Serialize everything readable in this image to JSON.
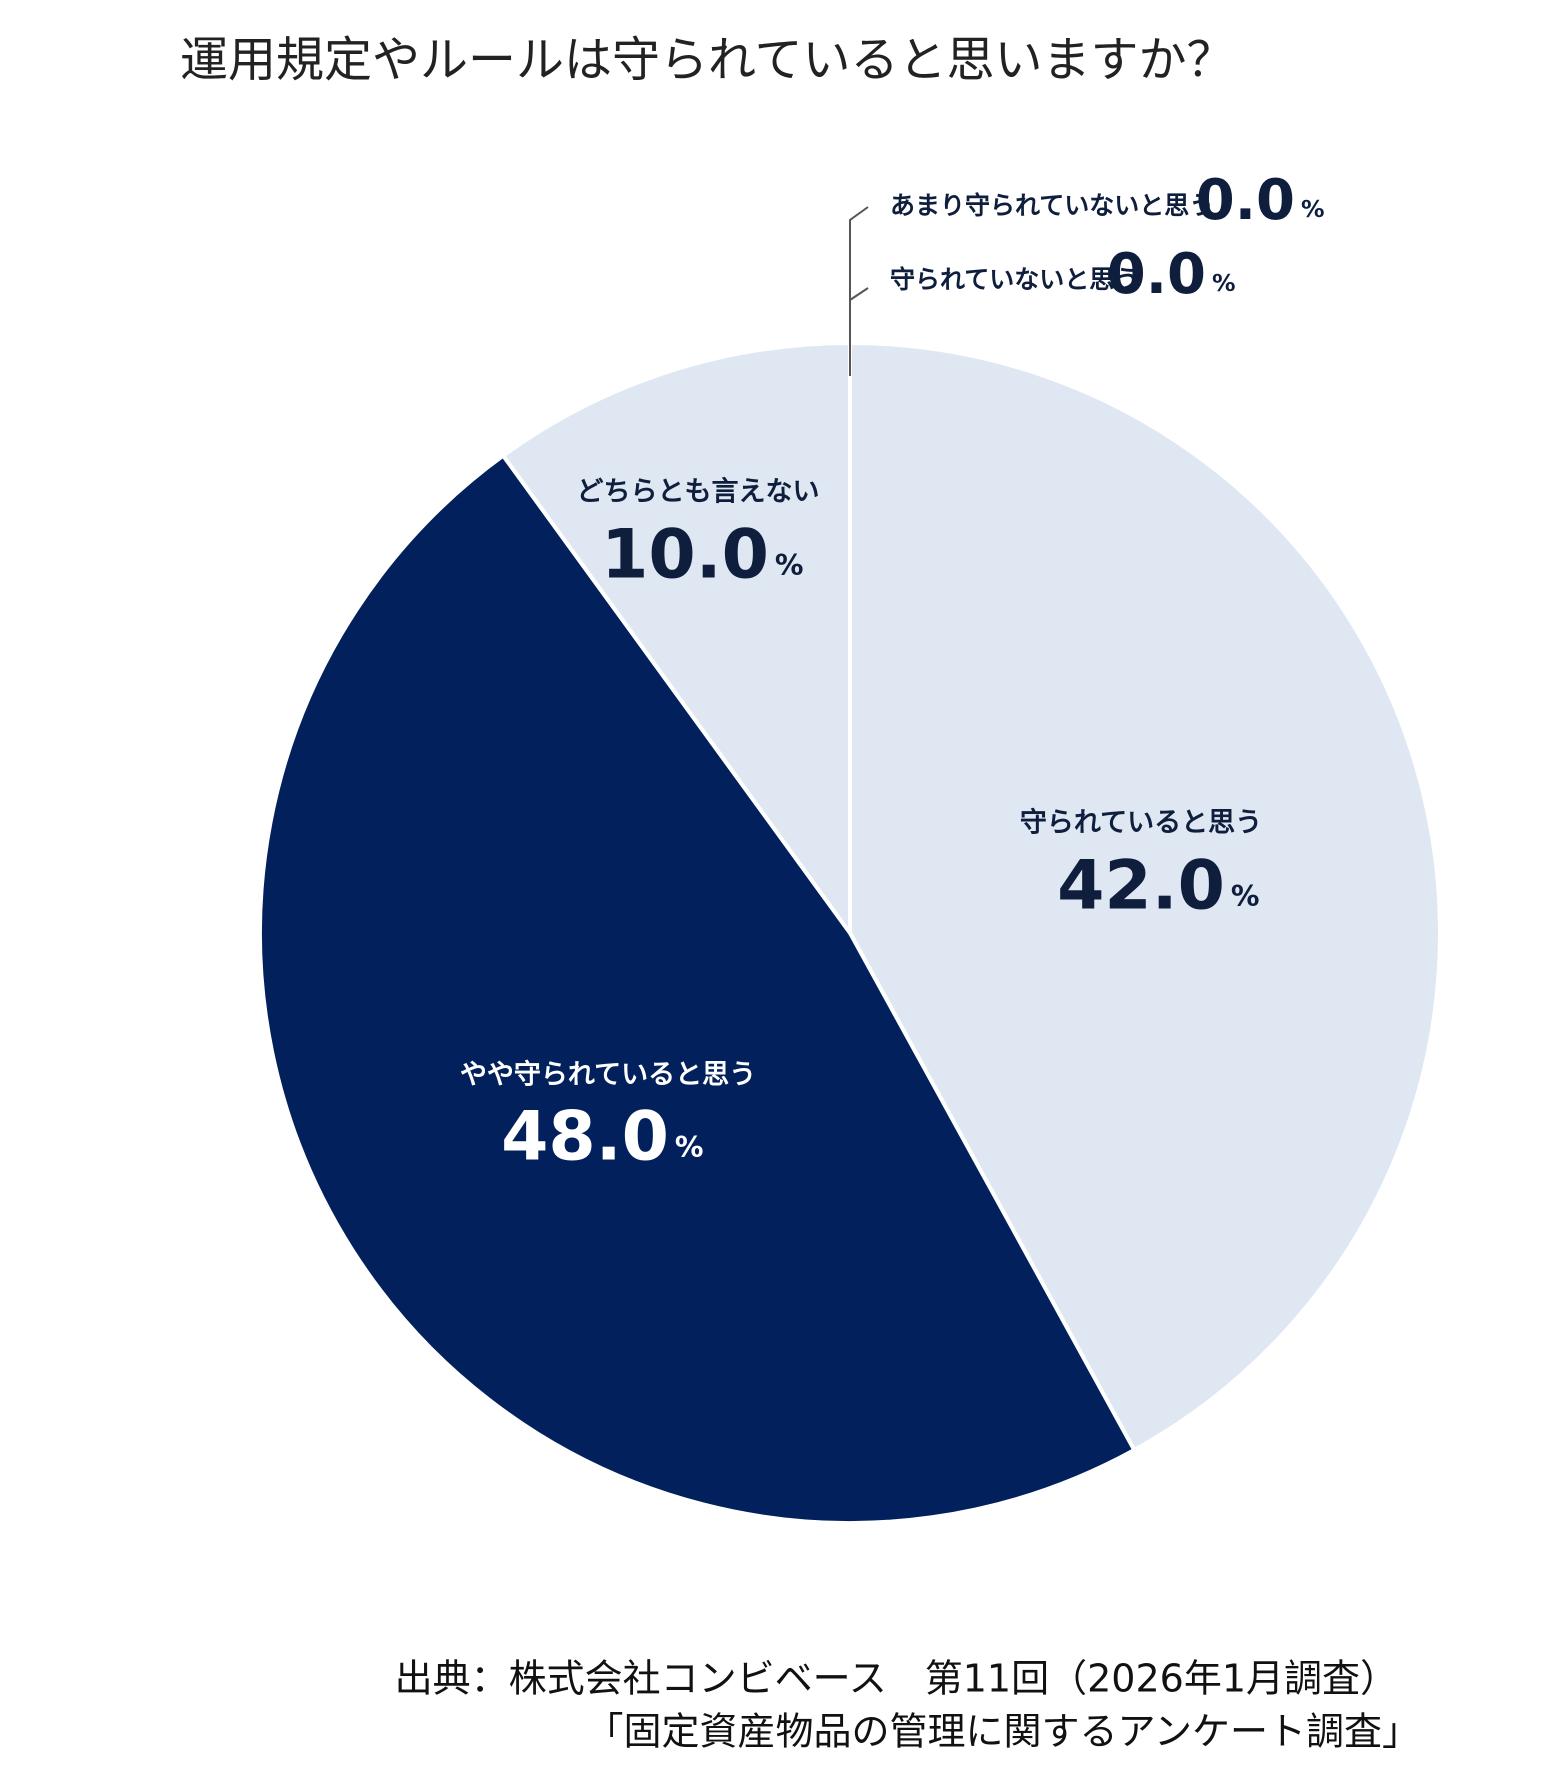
{
  "chart_data": {
    "type": "pie",
    "title": "運用規定やルールは守られていると思いますか？",
    "categories": [
      "守られていると思う",
      "やや守られていると思う",
      "どちらとも言えない",
      "あまり守られていないと思う",
      "守られていないと思う"
    ],
    "values": [
      42,
      48,
      10,
      0,
      0
    ],
    "value_labels": [
      "42.0",
      "48.0",
      "10.0",
      "0.0",
      "0.0"
    ],
    "unit": "%",
    "colors": [
      "#dfe8f2",
      "#02205b",
      "#dfe8f2",
      "#dfe8f2",
      "#02205b"
    ],
    "source": [
      "出典：株式会社コンビベース　第11回（2026年1月調査）",
      "「固定資産物品の管理に関するアンケート調査」"
    ]
  }
}
